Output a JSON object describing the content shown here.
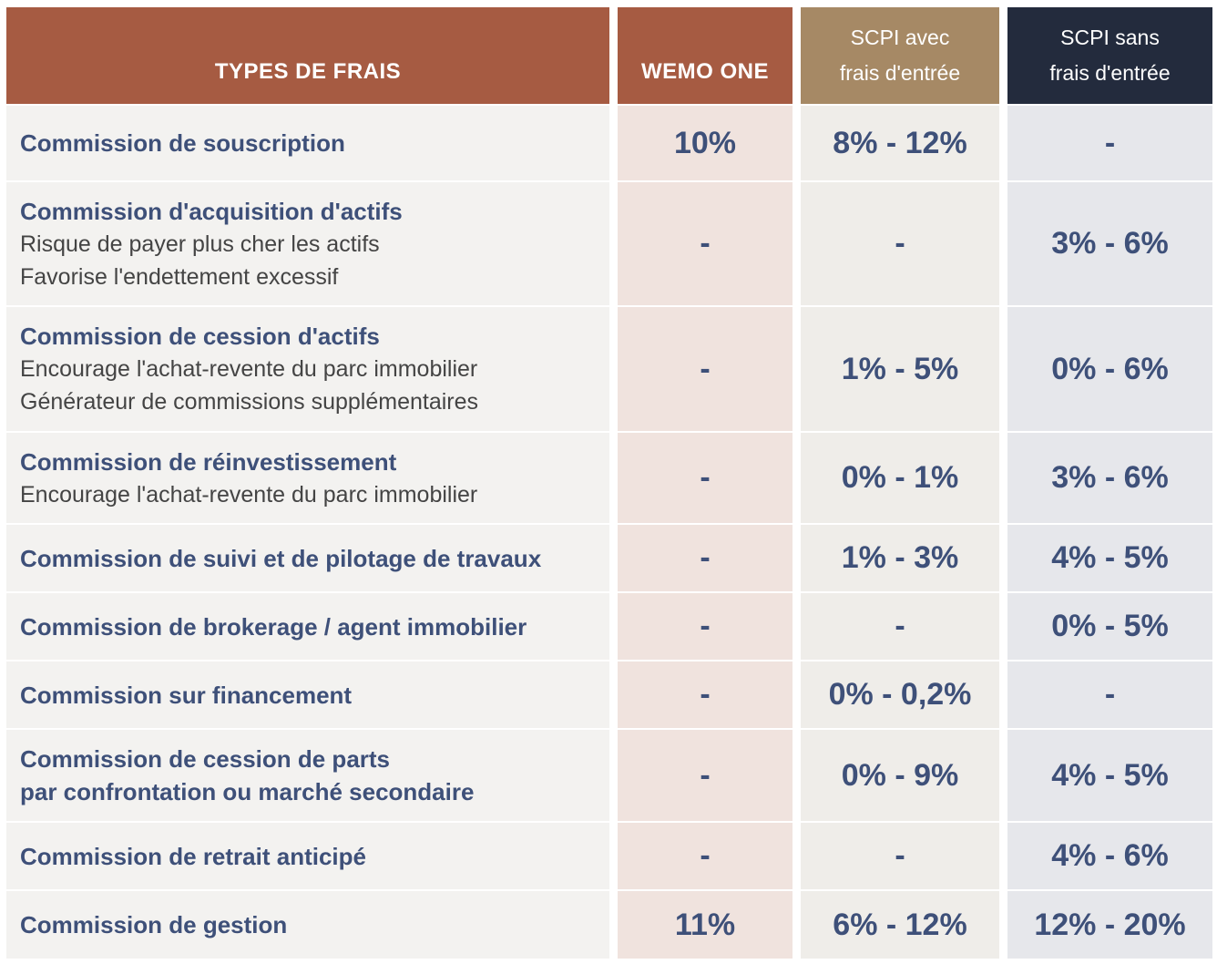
{
  "header": {
    "type": "TYPES DE FRAIS",
    "wemo": "WEMO ONE",
    "avec_line1": "SCPI avec",
    "avec_line2": "frais d'entrée",
    "sans_line1": "SCPI sans",
    "sans_line2": "frais d'entrée"
  },
  "rows": [
    {
      "title": "Commission de souscription",
      "wemo": "10%",
      "avec": "8% - 12%",
      "sans": "-"
    },
    {
      "title": "Commission d'acquisition d'actifs",
      "sub1": "Risque de payer plus cher les actifs",
      "sub2": "Favorise l'endettement excessif",
      "wemo": "-",
      "avec": "-",
      "sans": "3% - 6%"
    },
    {
      "title": "Commission de cession d'actifs",
      "sub1": "Encourage l'achat-revente du parc immobilier",
      "sub2": "Générateur de commissions supplémentaires",
      "wemo": "-",
      "avec": "1% - 5%",
      "sans": "0% - 6%"
    },
    {
      "title": "Commission de réinvestissement",
      "sub1": "Encourage l'achat-revente du parc immobilier",
      "wemo": "-",
      "avec": "0% - 1%",
      "sans": "3% - 6%"
    },
    {
      "title": "Commission de suivi et de pilotage de travaux",
      "wemo": "-",
      "avec": "1% - 3%",
      "sans": "4% - 5%"
    },
    {
      "title": "Commission de brokerage / agent immobilier",
      "wemo": "-",
      "avec": "-",
      "sans": "0% - 5%"
    },
    {
      "title": "Commission sur financement",
      "wemo": "-",
      "avec": "0% - 0,2%",
      "sans": "-"
    },
    {
      "title": "Commission de cession de parts",
      "title2": "par confrontation ou marché secondaire",
      "wemo": "-",
      "avec": "0% - 9%",
      "sans": "4% - 5%"
    },
    {
      "title": "Commission de retrait anticipé",
      "wemo": "-",
      "avec": "-",
      "sans": "4% - 6%"
    },
    {
      "title": "Commission de gestion",
      "wemo": "11%",
      "avec": "6% - 12%",
      "sans": "12% - 20%"
    }
  ]
}
